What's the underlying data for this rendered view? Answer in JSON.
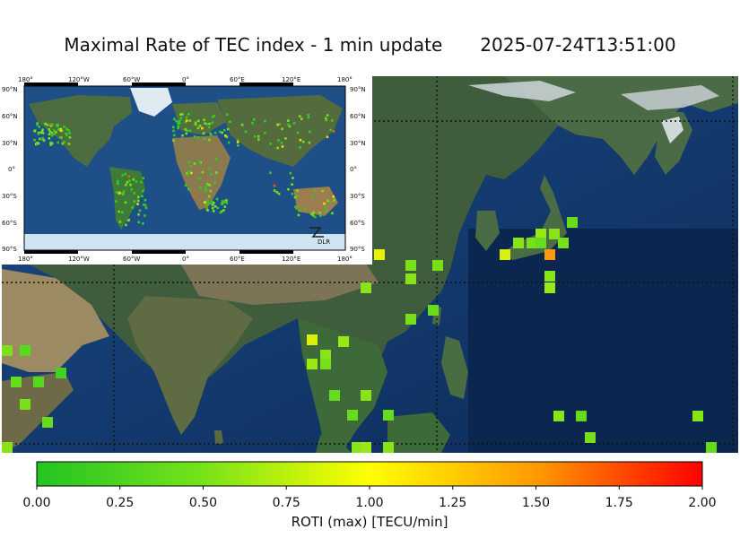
{
  "title": "Maximal Rate of TEC index - 1 min update",
  "timestamp": "2025-07-24T13:51:00",
  "inset": {
    "top_labels": [
      "180°",
      "120°W",
      "60°W",
      "0°",
      "60°E",
      "120°E",
      "180°"
    ],
    "bottom_labels": [
      "180°",
      "120°W",
      "60°W",
      "0°",
      "60°E",
      "120°E",
      "180°"
    ],
    "left_labels": [
      "90°N",
      "60°N",
      "30°N",
      "0°",
      "30°S",
      "60°S",
      "90°S"
    ],
    "right_labels": [
      "90°N",
      "60°N",
      "30°N",
      "0°",
      "30°S",
      "60°S",
      "90°S"
    ],
    "logo_text": "DLR"
  },
  "colorbar": {
    "ticks": [
      "0.00",
      "0.25",
      "0.50",
      "0.75",
      "1.00",
      "1.25",
      "1.50",
      "1.75",
      "2.00"
    ],
    "range": [
      0,
      2
    ],
    "label": "ROTI (max) [TECU/min]",
    "colors": [
      "#22c422",
      "#77e31a",
      "#ffff00",
      "#ff9a00",
      "#ff0000"
    ]
  },
  "palette": {
    "ocean": "#143a6e",
    "deep_ocean": "#0c2a55",
    "land": "#3d5a3a",
    "desert": "#8b7a5a",
    "snow": "#d8dde2",
    "ice": "#c9e1ef"
  }
}
